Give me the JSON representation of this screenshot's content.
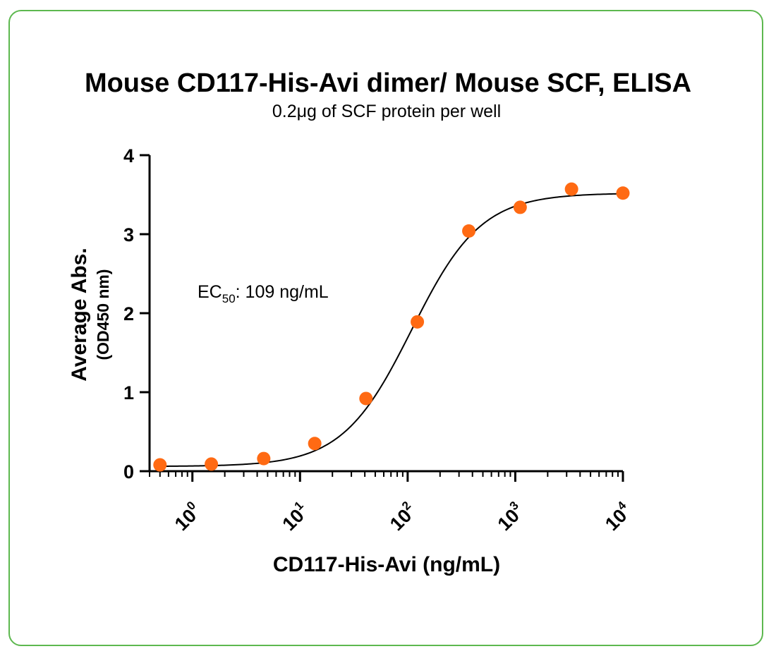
{
  "chart_data": {
    "type": "scatter",
    "title": "Mouse CD117-His-Avi dimer/ Mouse SCF, ELISA",
    "subtitle": "0.2μg of SCF protein per well",
    "xlabel": "CD117-His-Avi  (ng/mL)",
    "ylabel": "Average Abs.",
    "ylabel_sub": "(OD450 nm)",
    "x_scale": "log10",
    "xlim": [
      0.4,
      10000
    ],
    "ylim": [
      0,
      4
    ],
    "x_ticks": [
      {
        "value": 1,
        "base": "10",
        "exp": "0"
      },
      {
        "value": 10,
        "base": "10",
        "exp": "1"
      },
      {
        "value": 100,
        "base": "10",
        "exp": "2"
      },
      {
        "value": 1000,
        "base": "10",
        "exp": "3"
      },
      {
        "value": 10000,
        "base": "10",
        "exp": "4"
      }
    ],
    "y_ticks": [
      "0",
      "1",
      "2",
      "3",
      "4"
    ],
    "annotation": {
      "prefix": "EC",
      "sub": "50",
      "suffix": ": 109 ng/mL"
    },
    "series": [
      {
        "points": [
          {
            "x": 0.5,
            "y": 0.08
          },
          {
            "x": 1.5,
            "y": 0.09
          },
          {
            "x": 4.6,
            "y": 0.16
          },
          {
            "x": 13.7,
            "y": 0.35
          },
          {
            "x": 41,
            "y": 0.92
          },
          {
            "x": 123,
            "y": 1.89
          },
          {
            "x": 370,
            "y": 3.04
          },
          {
            "x": 1110,
            "y": 3.34
          },
          {
            "x": 3330,
            "y": 3.57
          },
          {
            "x": 10000,
            "y": 3.52
          }
        ],
        "color": "#ff6a13"
      }
    ],
    "fit": {
      "type": "4PL",
      "bottom": 0.06,
      "top": 3.52,
      "ec50": 109,
      "hill": 1.35,
      "color": "#000000"
    },
    "grid": false
  }
}
